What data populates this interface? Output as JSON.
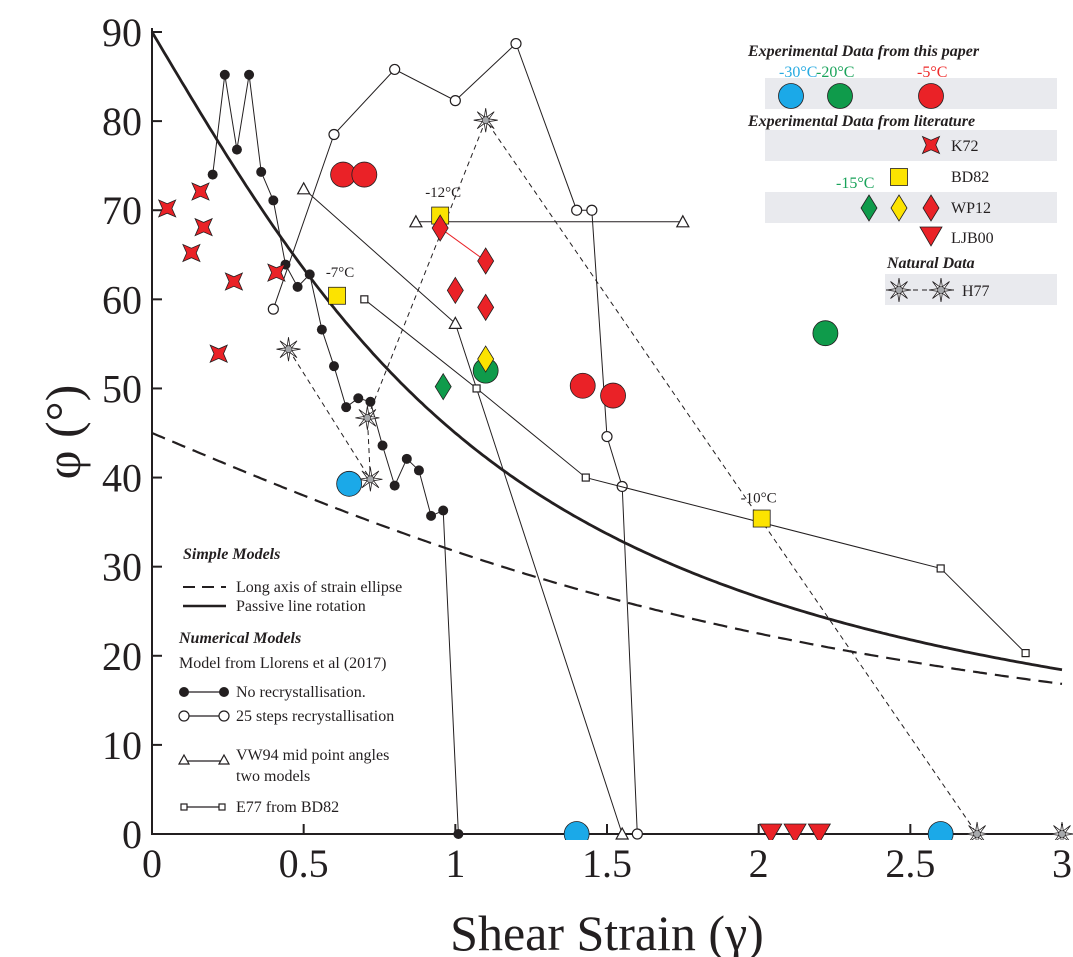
{
  "chart_data": {
    "type": "scatter",
    "xlabel": "Shear Strain (γ)",
    "ylabel": "φ (°)",
    "xlim": [
      0,
      3
    ],
    "ylim": [
      0,
      90
    ],
    "xticks": [
      0,
      0.5,
      1,
      1.5,
      2,
      2.5,
      3
    ],
    "xtick_labels": [
      "0",
      "0.5",
      "1",
      "1.5",
      "2",
      "2.5",
      "3"
    ],
    "yticks": [
      0,
      10,
      20,
      30,
      40,
      50,
      60,
      70,
      80,
      90
    ],
    "ytick_labels": [
      "0",
      "10",
      "20",
      "30",
      "40",
      "50",
      "60",
      "70",
      "80",
      "90"
    ],
    "grid": false,
    "colors": {
      "blue": "#1ba9e8",
      "green": "#0f9b4b",
      "red": "#ea2227",
      "yellow": "#fce300",
      "green_label": "#19a35a",
      "red_label": "#ee2a2a",
      "blue_label": "#27aae1",
      "legend_band": "#e9eaee"
    },
    "series": [
      {
        "name": "Long axis of strain ellipse",
        "kind": "function",
        "function": "strain_ellipse",
        "style": "dashed"
      },
      {
        "name": "Passive line rotation",
        "kind": "function",
        "function": "passive_line",
        "style": "solid"
      },
      {
        "name": "No recrystallisation.",
        "kind": "line",
        "marker": "filled-circle",
        "points": [
          [
            0.2,
            74
          ],
          [
            0.24,
            85.2
          ],
          [
            0.28,
            76.8
          ],
          [
            0.32,
            85.2
          ],
          [
            0.36,
            74.3
          ],
          [
            0.4,
            71.1
          ],
          [
            0.44,
            63.9
          ],
          [
            0.48,
            61.4
          ],
          [
            0.52,
            62.8
          ],
          [
            0.56,
            56.6
          ],
          [
            0.6,
            52.5
          ],
          [
            0.64,
            47.9
          ],
          [
            0.68,
            48.9
          ],
          [
            0.72,
            48.5
          ],
          [
            0.76,
            43.6
          ],
          [
            0.8,
            39.1
          ],
          [
            0.84,
            42.1
          ],
          [
            0.88,
            40.8
          ],
          [
            0.92,
            35.7
          ],
          [
            0.96,
            36.3
          ],
          [
            1.01,
            0
          ]
        ]
      },
      {
        "name": "25 steps recrystallisation",
        "kind": "line",
        "marker": "open-circle",
        "points": [
          [
            0.4,
            58.9
          ],
          [
            0.6,
            78.5
          ],
          [
            0.8,
            85.8
          ],
          [
            1.0,
            82.3
          ],
          [
            1.2,
            88.7
          ],
          [
            1.4,
            70
          ],
          [
            1.45,
            70
          ],
          [
            1.5,
            44.6
          ],
          [
            1.55,
            39
          ],
          [
            1.6,
            0
          ]
        ]
      },
      {
        "name": "VW94 mid point angles",
        "kind": "line",
        "marker": "open-triangle",
        "points": [
          [
            0.5,
            72.4
          ],
          [
            1.0,
            57.3
          ],
          [
            1.55,
            0
          ]
        ]
      },
      {
        "name": "VW94 mid point angles (second model)",
        "kind": "line",
        "marker": "open-triangle",
        "points": [
          [
            0.87,
            68.7
          ],
          [
            1.75,
            68.7
          ]
        ]
      },
      {
        "name": "E77 from BD82",
        "kind": "line",
        "marker": "open-square",
        "points": [
          [
            0.7,
            60
          ],
          [
            1.07,
            50
          ],
          [
            1.43,
            40
          ],
          [
            2.6,
            29.8
          ],
          [
            2.88,
            20.3
          ]
        ]
      },
      {
        "name": "H77",
        "kind": "dashed-line",
        "marker": "star",
        "points": [
          [
            0.45,
            54.4
          ],
          [
            0.72,
            39.8
          ],
          [
            0.71,
            46.7
          ],
          [
            1.1,
            80.1
          ],
          [
            2.72,
            0
          ],
          [
            3.0,
            0
          ]
        ]
      },
      {
        "name": "-30°C",
        "kind": "scatter",
        "marker": "circle",
        "color": "#1ba9e8",
        "points": [
          [
            0.65,
            39.3
          ],
          [
            1.4,
            0
          ],
          [
            2.6,
            0
          ]
        ]
      },
      {
        "name": "-20°C",
        "kind": "scatter",
        "marker": "circle",
        "color": "#0f9b4b",
        "points": [
          [
            1.1,
            52
          ],
          [
            2.22,
            56.2
          ]
        ]
      },
      {
        "name": "-5°C",
        "kind": "scatter",
        "marker": "circle",
        "color": "#ea2227",
        "points": [
          [
            0.63,
            74
          ],
          [
            0.7,
            74
          ],
          [
            1.42,
            50.3
          ],
          [
            1.52,
            49.2
          ]
        ]
      },
      {
        "name": "K72",
        "kind": "scatter",
        "marker": "star4",
        "color": "#ea2227",
        "points": [
          [
            0.05,
            70.2
          ],
          [
            0.13,
            65.2
          ],
          [
            0.16,
            72.1
          ],
          [
            0.17,
            68.1
          ],
          [
            0.22,
            53.9
          ],
          [
            0.27,
            62
          ],
          [
            0.41,
            63
          ]
        ]
      },
      {
        "name": "BD82",
        "kind": "scatter",
        "marker": "square",
        "color": "#fce300",
        "points": [
          [
            0.61,
            60.4
          ],
          [
            0.95,
            69.4
          ],
          [
            2.01,
            35.4
          ]
        ]
      },
      {
        "name": "WP12",
        "kind": "scatter",
        "marker": "diamond",
        "points": [
          [
            0.95,
            68
          ],
          [
            1.0,
            61
          ],
          [
            1.1,
            64.3
          ],
          [
            1.1,
            59.1
          ]
        ],
        "color": "#ea2227"
      },
      {
        "name": "WP12 -15°C green",
        "kind": "scatter",
        "marker": "diamond",
        "color": "#0f9b4b",
        "points": [
          [
            0.96,
            50.2
          ]
        ]
      },
      {
        "name": "WP12 -15°C yellow",
        "kind": "scatter",
        "marker": "diamond",
        "color": "#fce300",
        "points": [
          [
            1.1,
            53.3
          ]
        ]
      },
      {
        "name": "LJB00",
        "kind": "scatter",
        "marker": "triangle-down",
        "color": "#ea2227",
        "points": [
          [
            2.04,
            0
          ],
          [
            2.12,
            0
          ],
          [
            2.2,
            0
          ]
        ]
      }
    ],
    "annotations": [
      {
        "text": "-12°C",
        "x": 0.96,
        "y": 71.5
      },
      {
        "text": "-7°C",
        "x": 0.62,
        "y": 62.5
      },
      {
        "text": "-10°C",
        "x": 2.0,
        "y": 37.2
      }
    ]
  },
  "legend": {
    "simple_header": "Simple Models",
    "simple_items": [
      "Long axis of strain ellipse",
      "Passive line rotation"
    ],
    "numerical_header": "Numerical Models",
    "numerical_subheader": "Model from Llorens et al (2017)",
    "numerical_items": [
      "No recrystallisation.",
      "25 steps recrystallisation"
    ],
    "vw94_lines": [
      "VW94 mid point angles",
      "two models"
    ],
    "e77": "E77 from BD82",
    "exp_header": "Experimental Data from this paper",
    "temps": [
      "-30°C",
      "-20°C",
      "-5°C"
    ],
    "lit_header": "Experimental Data from literature",
    "lit_items": [
      "K72",
      "BD82",
      "WP12",
      "LJB00"
    ],
    "temp15": "-15°C",
    "natural_header": "Natural Data",
    "natural_item": "H77"
  }
}
